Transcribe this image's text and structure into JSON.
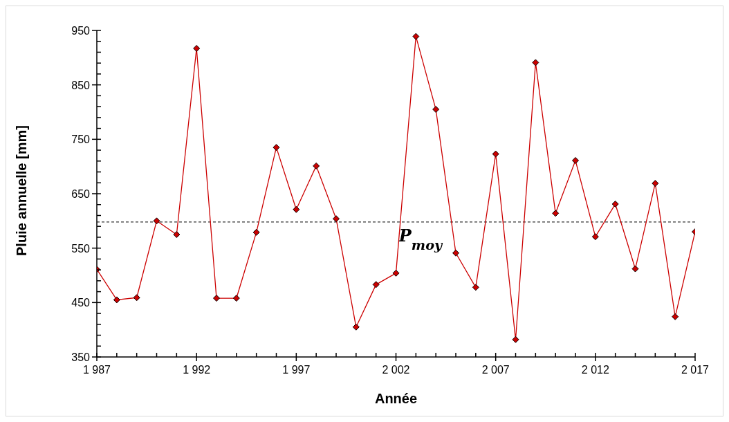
{
  "chart_data": {
    "type": "line",
    "xlabel": "Année",
    "ylabel": "Pluie annuelle [mm]",
    "x": [
      1987,
      1988,
      1989,
      1990,
      1991,
      1992,
      1993,
      1994,
      1995,
      1996,
      1997,
      1998,
      1999,
      2000,
      2001,
      2002,
      2003,
      2004,
      2005,
      2006,
      2007,
      2008,
      2009,
      2010,
      2011,
      2012,
      2013,
      2014,
      2015,
      2016,
      2017
    ],
    "series": [
      {
        "color": "#cc0000",
        "values": [
          511,
          455,
          459,
          600,
          575,
          917,
          458,
          458,
          579,
          735,
          621,
          701,
          604,
          405,
          483,
          504,
          939,
          805,
          541,
          478,
          723,
          382,
          891,
          614,
          711,
          571,
          631,
          512,
          669,
          424,
          580
        ]
      }
    ],
    "marker": "diamond",
    "line_style": "solid",
    "xlim": [
      1987,
      2017
    ],
    "xticks": [
      {
        "value": 1987,
        "label": "1 987"
      },
      {
        "value": 1988,
        "label": null
      },
      {
        "value": 1989,
        "label": null
      },
      {
        "value": 1990,
        "label": null
      },
      {
        "value": 1991,
        "label": null
      },
      {
        "value": 1992,
        "label": "1 992"
      },
      {
        "value": 1993,
        "label": null
      },
      {
        "value": 1994,
        "label": null
      },
      {
        "value": 1995,
        "label": null
      },
      {
        "value": 1996,
        "label": null
      },
      {
        "value": 1997,
        "label": "1 997"
      },
      {
        "value": 1998,
        "label": null
      },
      {
        "value": 1999,
        "label": null
      },
      {
        "value": 2000,
        "label": null
      },
      {
        "value": 2001,
        "label": null
      },
      {
        "value": 2002,
        "label": "2 002"
      },
      {
        "value": 2003,
        "label": null
      },
      {
        "value": 2004,
        "label": null
      },
      {
        "value": 2005,
        "label": null
      },
      {
        "value": 2006,
        "label": null
      },
      {
        "value": 2007,
        "label": "2 007"
      },
      {
        "value": 2008,
        "label": null
      },
      {
        "value": 2009,
        "label": null
      },
      {
        "value": 2010,
        "label": null
      },
      {
        "value": 2011,
        "label": null
      },
      {
        "value": 2012,
        "label": "2 012"
      },
      {
        "value": 2013,
        "label": null
      },
      {
        "value": 2014,
        "label": null
      },
      {
        "value": 2015,
        "label": null
      },
      {
        "value": 2016,
        "label": null
      },
      {
        "value": 2017,
        "label": "2 017"
      }
    ],
    "ylim": [
      350,
      950
    ],
    "yticks": [
      350,
      {
        "value": 370,
        "label": null
      },
      {
        "value": 390,
        "label": null
      },
      {
        "value": 410,
        "label": null
      },
      {
        "value": 430,
        "label": null
      },
      450,
      {
        "value": 470,
        "label": null
      },
      {
        "value": 490,
        "label": null
      },
      {
        "value": 510,
        "label": null
      },
      {
        "value": 530,
        "label": null
      },
      550,
      {
        "value": 570,
        "label": null
      },
      {
        "value": 590,
        "label": null
      },
      {
        "value": 610,
        "label": null
      },
      {
        "value": 630,
        "label": null
      },
      650,
      {
        "value": 670,
        "label": null
      },
      {
        "value": 690,
        "label": null
      },
      {
        "value": 710,
        "label": null
      },
      {
        "value": 730,
        "label": null
      },
      750,
      {
        "value": 770,
        "label": null
      },
      {
        "value": 790,
        "label": null
      },
      {
        "value": 810,
        "label": null
      },
      {
        "value": 830,
        "label": null
      },
      850,
      {
        "value": 870,
        "label": null
      },
      {
        "value": 890,
        "label": null
      },
      {
        "value": 910,
        "label": null
      },
      {
        "value": 930,
        "label": null
      },
      950
    ],
    "ref_lines": [
      {
        "axis": "y",
        "value": 598,
        "label": "P$_{moy}$",
        "color": "#000000",
        "line_style": "dashed"
      }
    ]
  }
}
